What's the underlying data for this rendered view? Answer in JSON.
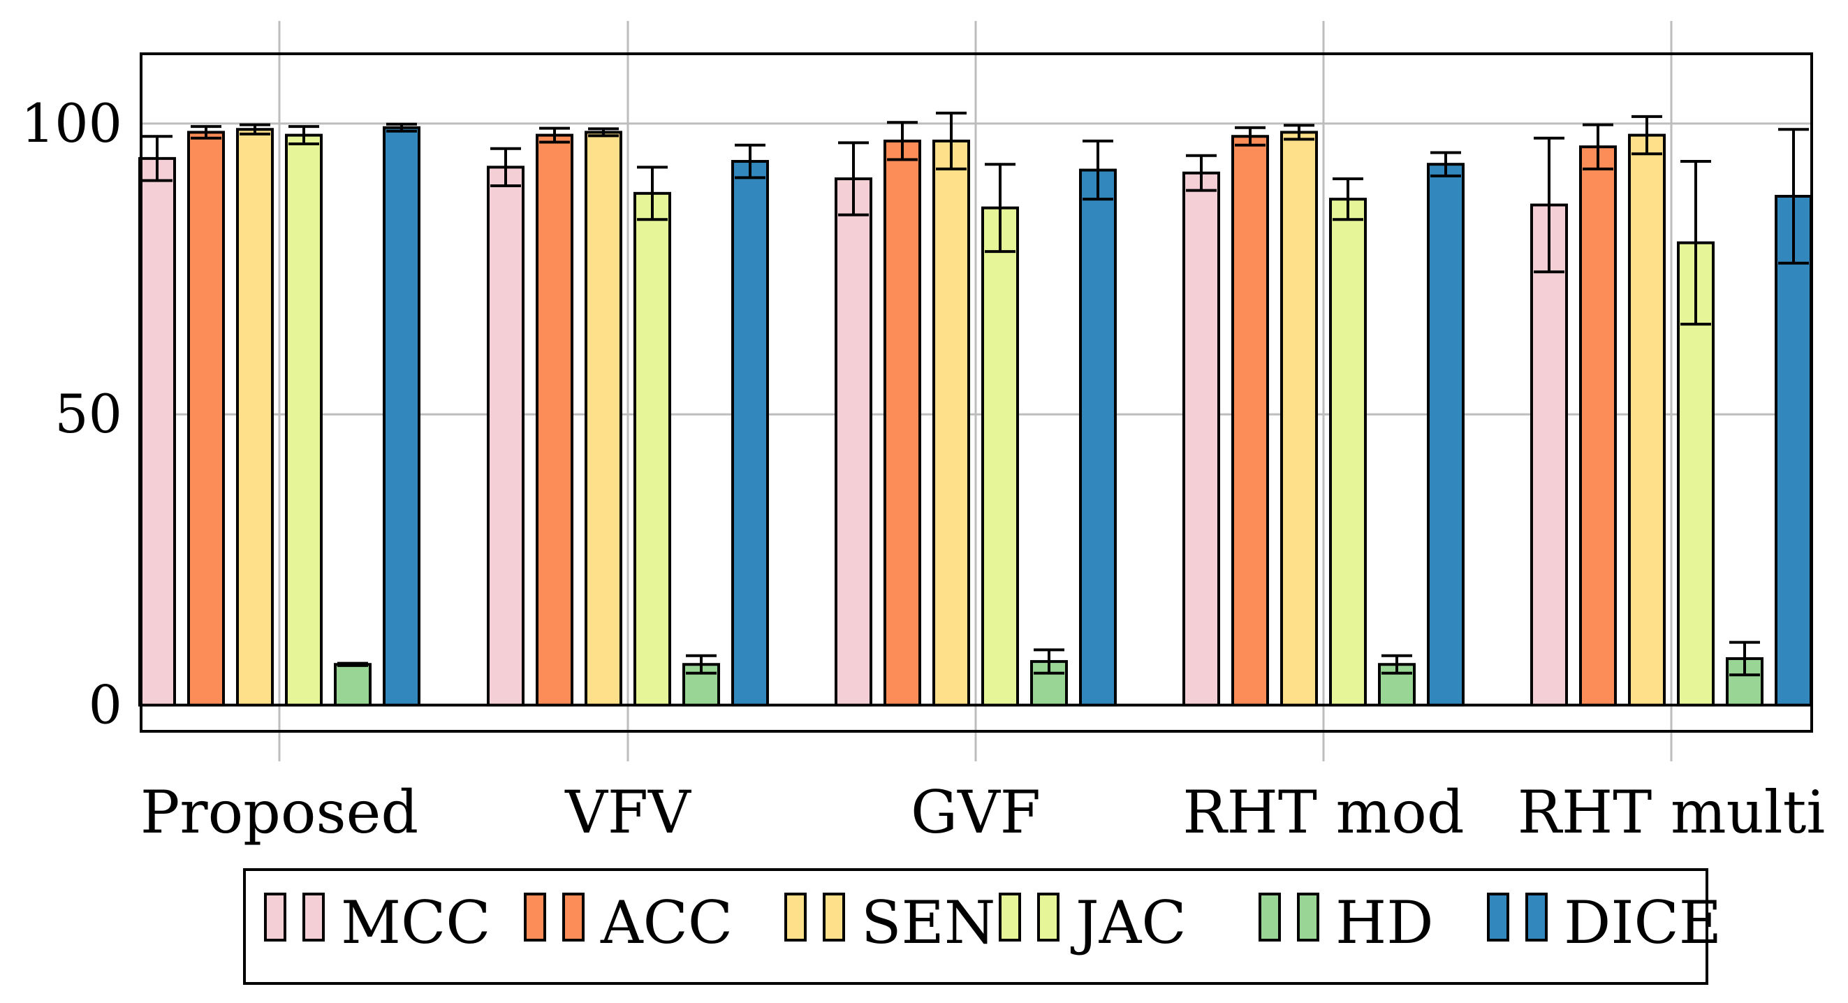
{
  "chart_data": {
    "type": "bar",
    "categories": [
      "Proposed",
      "VFV",
      "GVF",
      "RHT mod",
      "RHT multi"
    ],
    "y_ticks": [
      "0",
      "50",
      "100"
    ],
    "ylim": [
      -4.5,
      112
    ],
    "grid": true,
    "legend_position": "bottom",
    "series": [
      {
        "name": "MCC",
        "color": "#f4cfd6",
        "values": [
          94,
          92.5,
          90.5,
          91.5,
          86
        ],
        "errors": [
          3.8,
          3.2,
          6.2,
          3,
          11.5
        ]
      },
      {
        "name": "ACC",
        "color": "#fc8d59",
        "values": [
          98.5,
          98,
          97,
          97.8,
          96
        ],
        "errors": [
          1,
          1.2,
          3.2,
          1.5,
          3.8
        ]
      },
      {
        "name": "SEN",
        "color": "#fee08b",
        "values": [
          99,
          98.5,
          97,
          98.5,
          98
        ],
        "errors": [
          0.8,
          0.6,
          4.8,
          1.2,
          3.2
        ]
      },
      {
        "name": "JAC",
        "color": "#e6f598",
        "values": [
          98,
          88,
          85.5,
          87,
          79.5
        ],
        "errors": [
          1.5,
          4.5,
          7.5,
          3.5,
          14
        ]
      },
      {
        "name": "HD",
        "color": "#99d594",
        "values": [
          7,
          7,
          7.5,
          7,
          8
        ],
        "errors": [
          0.2,
          1.5,
          2,
          1.5,
          2.8
        ]
      },
      {
        "name": "DICE",
        "color": "#3288bd",
        "values": [
          99.3,
          93.5,
          92,
          93,
          87.5
        ],
        "errors": [
          0.6,
          2.8,
          5,
          2,
          11.5
        ]
      }
    ]
  }
}
